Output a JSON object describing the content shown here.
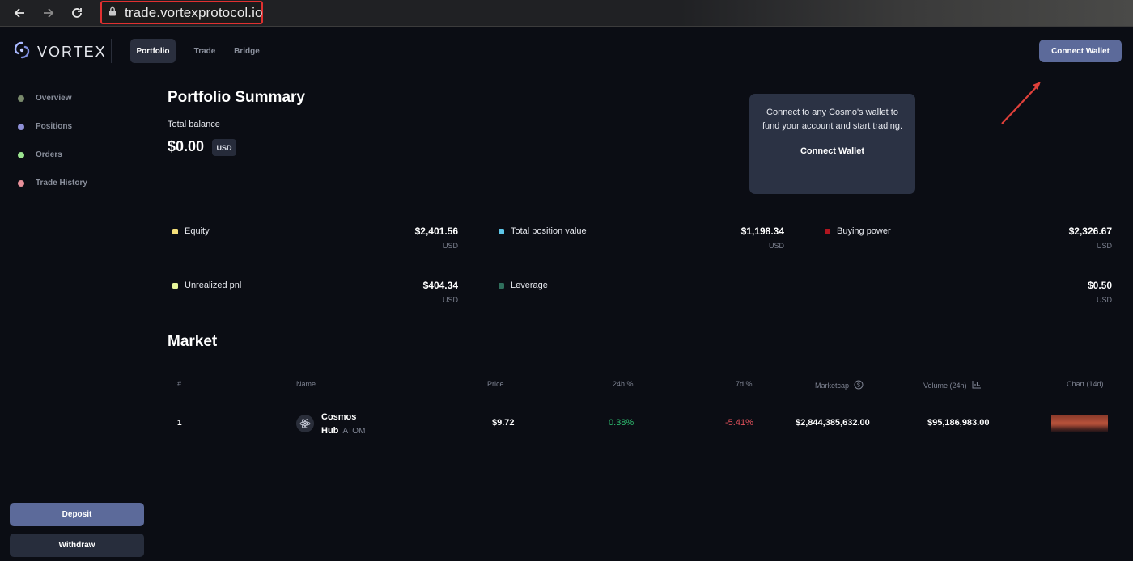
{
  "browser": {
    "url": "trade.vortexprotocol.io",
    "icons": [
      "back-arrow-icon",
      "forward-arrow-icon",
      "reload-icon",
      "lock-icon"
    ]
  },
  "nav": {
    "brand": "VORTEX",
    "tabs": [
      "Portfolio",
      "Trade",
      "Bridge"
    ],
    "active_tab": "Portfolio",
    "connect_wallet": "Connect Wallet"
  },
  "sidebar": {
    "items": [
      {
        "label": "Overview",
        "color": "#7a8a6c"
      },
      {
        "label": "Positions",
        "color": "#8e8fd6"
      },
      {
        "label": "Orders",
        "color": "#9be38f"
      },
      {
        "label": "Trade History",
        "color": "#e8909a"
      }
    ],
    "deposit": "Deposit",
    "withdraw": "Withdraw"
  },
  "summary": {
    "title": "Portfolio Summary",
    "total_balance_label": "Total balance",
    "total_balance": "$0.00",
    "currency": "USD"
  },
  "tooltip": {
    "text": "Connect to any Cosmo's wallet to fund your account and start trading.",
    "button": "Connect Wallet"
  },
  "stats": [
    {
      "label": "Equity",
      "value": "$2,401.56",
      "unit": "USD",
      "color": "#f5e07a"
    },
    {
      "label": "Total position value",
      "value": "$1,198.34",
      "unit": "USD",
      "color": "#5ec6e8"
    },
    {
      "label": "Buying power",
      "value": "$2,326.67",
      "unit": "USD",
      "color": "#b0151f"
    },
    {
      "label": "Unrealized pnl",
      "value": "$404.34",
      "unit": "USD",
      "color": "#e6f59a"
    },
    {
      "label": "Leverage",
      "value": "",
      "unit": "",
      "color": "#2f6e5c"
    },
    {
      "label": "",
      "value": "$0.50",
      "unit": "USD",
      "color": ""
    }
  ],
  "market": {
    "title": "Market",
    "headers": [
      "#",
      "Name",
      "Price",
      "24h %",
      "7d %",
      "Marketcap",
      "Volume (24h)",
      "Chart (14d)"
    ],
    "rows": [
      {
        "rank": "1",
        "name_line1": "Cosmos",
        "name_line2": "Hub",
        "symbol": "ATOM",
        "price": "$9.72",
        "change_24h": "0.38%",
        "change_7d": "-5.41%",
        "marketcap": "$2,844,385,632.00",
        "volume": "$95,186,983.00"
      }
    ],
    "positive_color": "#2fbf71",
    "negative_color": "#e0505a"
  }
}
